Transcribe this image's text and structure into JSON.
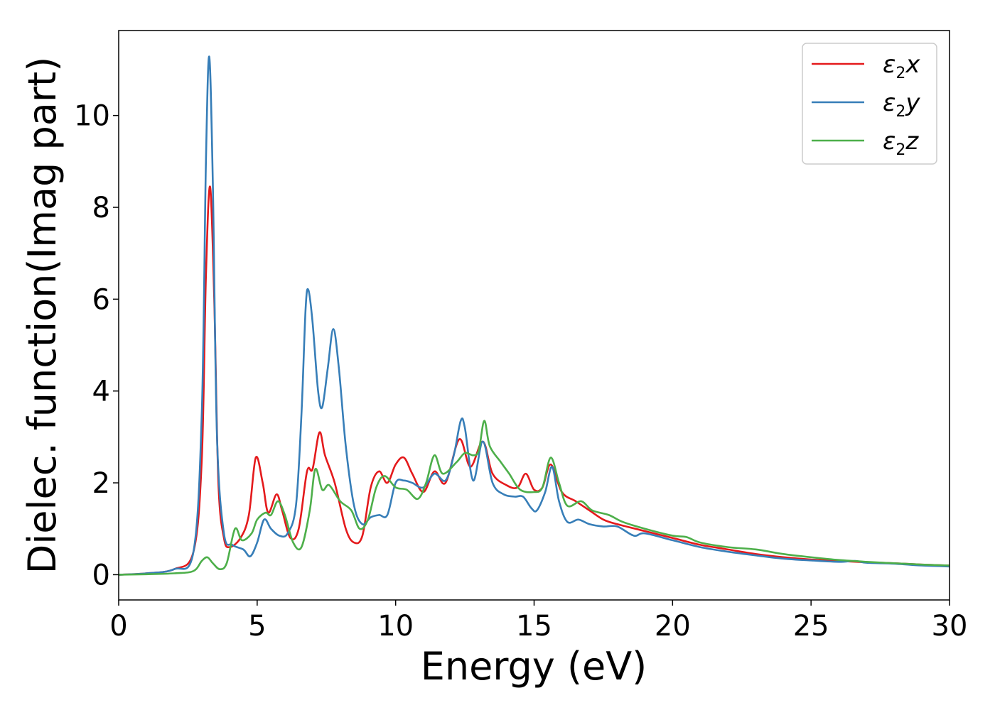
{
  "chart_data": {
    "type": "line",
    "title": "",
    "xlabel": "Energy (eV)",
    "ylabel": "Dielec. function(Imag part)",
    "xlim": [
      0,
      30
    ],
    "ylim": [
      -0.55,
      11.85
    ],
    "xticks": [
      "0",
      "5",
      "10",
      "15",
      "20",
      "25",
      "30"
    ],
    "yticks": [
      "0",
      "2",
      "4",
      "6",
      "8",
      "10"
    ],
    "grid": false,
    "legend_position": "top-right",
    "series": [
      {
        "name": "ε2x",
        "color": "#e41a1c",
        "points": [
          [
            0,
            0
          ],
          [
            1,
            0.03
          ],
          [
            2,
            0.12
          ],
          [
            2.7,
            0.5
          ],
          [
            3.0,
            2.5
          ],
          [
            3.15,
            6.5
          ],
          [
            3.3,
            8.45
          ],
          [
            3.45,
            6.0
          ],
          [
            3.6,
            2.0
          ],
          [
            3.8,
            0.8
          ],
          [
            4.0,
            0.6
          ],
          [
            4.4,
            0.8
          ],
          [
            4.7,
            1.3
          ],
          [
            4.95,
            2.55
          ],
          [
            5.2,
            2.0
          ],
          [
            5.4,
            1.35
          ],
          [
            5.7,
            1.75
          ],
          [
            5.9,
            1.4
          ],
          [
            6.2,
            0.8
          ],
          [
            6.5,
            1.0
          ],
          [
            6.8,
            2.25
          ],
          [
            7.0,
            2.3
          ],
          [
            7.25,
            3.1
          ],
          [
            7.45,
            2.6
          ],
          [
            7.8,
            2.0
          ],
          [
            8.2,
            1.0
          ],
          [
            8.5,
            0.7
          ],
          [
            8.8,
            0.85
          ],
          [
            9.1,
            1.9
          ],
          [
            9.4,
            2.25
          ],
          [
            9.7,
            2.0
          ],
          [
            10.0,
            2.4
          ],
          [
            10.3,
            2.55
          ],
          [
            10.6,
            2.2
          ],
          [
            11.0,
            1.8
          ],
          [
            11.4,
            2.25
          ],
          [
            11.8,
            2.0
          ],
          [
            12.3,
            2.95
          ],
          [
            12.7,
            2.35
          ],
          [
            13.15,
            2.9
          ],
          [
            13.5,
            2.2
          ],
          [
            14.0,
            1.95
          ],
          [
            14.4,
            1.9
          ],
          [
            14.7,
            2.2
          ],
          [
            15.0,
            1.85
          ],
          [
            15.3,
            1.9
          ],
          [
            15.6,
            2.4
          ],
          [
            16.0,
            1.8
          ],
          [
            16.5,
            1.6
          ],
          [
            17.0,
            1.4
          ],
          [
            17.5,
            1.2
          ],
          [
            18.0,
            1.1
          ],
          [
            19.0,
            0.95
          ],
          [
            20.0,
            0.8
          ],
          [
            21.0,
            0.65
          ],
          [
            22.0,
            0.55
          ],
          [
            23.0,
            0.45
          ],
          [
            24.0,
            0.38
          ],
          [
            25.0,
            0.33
          ],
          [
            26.0,
            0.3
          ],
          [
            27.0,
            0.27
          ],
          [
            28.0,
            0.25
          ],
          [
            29.0,
            0.22
          ],
          [
            30.0,
            0.2
          ]
        ]
      },
      {
        "name": "ε2y",
        "color": "#377eb8",
        "points": [
          [
            0,
            0
          ],
          [
            1,
            0.03
          ],
          [
            2,
            0.12
          ],
          [
            2.7,
            0.5
          ],
          [
            3.0,
            3.5
          ],
          [
            3.15,
            9.0
          ],
          [
            3.27,
            11.28
          ],
          [
            3.4,
            8.5
          ],
          [
            3.55,
            3.0
          ],
          [
            3.8,
            0.9
          ],
          [
            4.1,
            0.65
          ],
          [
            4.5,
            0.55
          ],
          [
            4.75,
            0.4
          ],
          [
            5.0,
            0.7
          ],
          [
            5.25,
            1.2
          ],
          [
            5.5,
            1.0
          ],
          [
            5.8,
            0.85
          ],
          [
            6.1,
            0.9
          ],
          [
            6.4,
            1.5
          ],
          [
            6.6,
            3.5
          ],
          [
            6.75,
            5.8
          ],
          [
            6.85,
            6.2
          ],
          [
            7.0,
            5.5
          ],
          [
            7.2,
            4.0
          ],
          [
            7.35,
            3.65
          ],
          [
            7.55,
            4.5
          ],
          [
            7.75,
            5.35
          ],
          [
            7.95,
            4.5
          ],
          [
            8.2,
            2.8
          ],
          [
            8.5,
            1.5
          ],
          [
            8.8,
            1.1
          ],
          [
            9.1,
            1.25
          ],
          [
            9.4,
            1.3
          ],
          [
            9.7,
            1.3
          ],
          [
            10.0,
            2.0
          ],
          [
            10.3,
            2.05
          ],
          [
            10.6,
            2.0
          ],
          [
            11.0,
            1.9
          ],
          [
            11.4,
            2.2
          ],
          [
            11.8,
            2.05
          ],
          [
            12.1,
            2.6
          ],
          [
            12.35,
            3.35
          ],
          [
            12.5,
            3.2
          ],
          [
            12.8,
            2.05
          ],
          [
            13.15,
            2.9
          ],
          [
            13.5,
            2.0
          ],
          [
            13.9,
            1.75
          ],
          [
            14.3,
            1.7
          ],
          [
            14.6,
            1.7
          ],
          [
            14.9,
            1.45
          ],
          [
            15.1,
            1.4
          ],
          [
            15.4,
            1.8
          ],
          [
            15.65,
            2.35
          ],
          [
            15.9,
            1.6
          ],
          [
            16.2,
            1.15
          ],
          [
            16.6,
            1.2
          ],
          [
            17.0,
            1.1
          ],
          [
            17.5,
            1.05
          ],
          [
            18.0,
            1.05
          ],
          [
            18.6,
            0.85
          ],
          [
            19.0,
            0.9
          ],
          [
            20.0,
            0.75
          ],
          [
            21.0,
            0.6
          ],
          [
            22.0,
            0.5
          ],
          [
            23.0,
            0.42
          ],
          [
            24.0,
            0.35
          ],
          [
            25.0,
            0.31
          ],
          [
            26.0,
            0.28
          ],
          [
            26.6,
            0.3
          ],
          [
            27.0,
            0.26
          ],
          [
            28.0,
            0.24
          ],
          [
            29.0,
            0.2
          ],
          [
            30.0,
            0.18
          ]
        ]
      },
      {
        "name": "ε2z",
        "color": "#4daf4a",
        "points": [
          [
            0,
            0
          ],
          [
            1,
            0.01
          ],
          [
            2,
            0.03
          ],
          [
            2.7,
            0.08
          ],
          [
            3.0,
            0.3
          ],
          [
            3.2,
            0.38
          ],
          [
            3.4,
            0.25
          ],
          [
            3.65,
            0.12
          ],
          [
            3.9,
            0.25
          ],
          [
            4.2,
            1.0
          ],
          [
            4.45,
            0.75
          ],
          [
            4.8,
            0.9
          ],
          [
            5.0,
            1.2
          ],
          [
            5.3,
            1.35
          ],
          [
            5.5,
            1.3
          ],
          [
            5.75,
            1.6
          ],
          [
            6.0,
            1.3
          ],
          [
            6.3,
            0.7
          ],
          [
            6.6,
            0.6
          ],
          [
            6.9,
            1.4
          ],
          [
            7.1,
            2.3
          ],
          [
            7.35,
            1.85
          ],
          [
            7.6,
            1.95
          ],
          [
            8.0,
            1.6
          ],
          [
            8.4,
            1.4
          ],
          [
            8.7,
            1.0
          ],
          [
            9.0,
            1.2
          ],
          [
            9.3,
            1.9
          ],
          [
            9.6,
            2.15
          ],
          [
            10.0,
            1.9
          ],
          [
            10.4,
            1.85
          ],
          [
            10.8,
            1.65
          ],
          [
            11.1,
            2.0
          ],
          [
            11.4,
            2.6
          ],
          [
            11.7,
            2.2
          ],
          [
            12.2,
            2.45
          ],
          [
            12.5,
            2.65
          ],
          [
            12.8,
            2.6
          ],
          [
            13.0,
            2.7
          ],
          [
            13.2,
            3.35
          ],
          [
            13.4,
            2.8
          ],
          [
            13.8,
            2.45
          ],
          [
            14.1,
            2.2
          ],
          [
            14.5,
            1.85
          ],
          [
            15.0,
            1.8
          ],
          [
            15.3,
            1.9
          ],
          [
            15.6,
            2.55
          ],
          [
            15.9,
            2.0
          ],
          [
            16.2,
            1.5
          ],
          [
            16.7,
            1.6
          ],
          [
            17.1,
            1.4
          ],
          [
            17.7,
            1.3
          ],
          [
            18.2,
            1.15
          ],
          [
            19.0,
            1.0
          ],
          [
            20.0,
            0.85
          ],
          [
            20.5,
            0.82
          ],
          [
            21.0,
            0.7
          ],
          [
            22.0,
            0.6
          ],
          [
            23.0,
            0.55
          ],
          [
            24.0,
            0.45
          ],
          [
            25.0,
            0.38
          ],
          [
            26.0,
            0.32
          ],
          [
            27.0,
            0.28
          ],
          [
            28.0,
            0.25
          ],
          [
            29.0,
            0.22
          ],
          [
            30.0,
            0.2
          ]
        ]
      }
    ]
  }
}
